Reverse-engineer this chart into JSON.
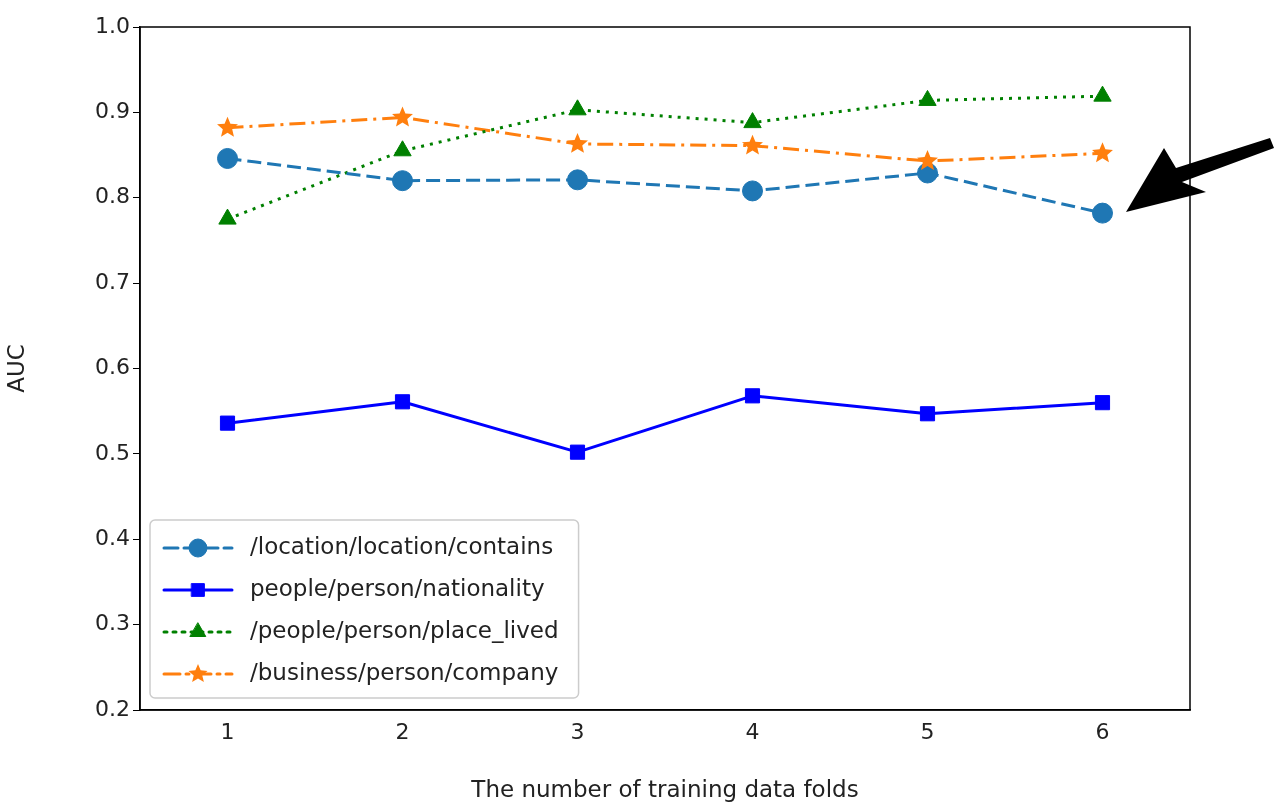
{
  "chart_data": {
    "type": "line",
    "xlabel": "The number of training data folds",
    "ylabel": "AUC",
    "x": [
      1,
      2,
      3,
      4,
      5,
      6
    ],
    "xlim": [
      0.5,
      6.5
    ],
    "xticks": [
      1,
      2,
      3,
      4,
      5,
      6
    ],
    "ylim": [
      0.2,
      1.0
    ],
    "yticks": [
      {
        "value": 0.2,
        "label": "0.2"
      },
      {
        "value": 0.3,
        "label": "0.3"
      },
      {
        "value": 0.4,
        "label": "0.4"
      },
      {
        "value": 0.5,
        "label": "0.5"
      },
      {
        "value": 0.6,
        "label": "0.6"
      },
      {
        "value": 0.7,
        "label": "0.7"
      },
      {
        "value": 0.8,
        "label": "0.8"
      },
      {
        "value": 0.9,
        "label": "0.9"
      },
      {
        "value": 1.0,
        "label": "1.0"
      }
    ],
    "grid": false,
    "legend": "bottom left",
    "series": [
      {
        "name": "/location/location/contains",
        "color": "#1f77b4",
        "marker": "circle",
        "line_style": "dashed",
        "values": [
          0.846,
          0.82,
          0.821,
          0.808,
          0.829,
          0.782
        ]
      },
      {
        "name": "people/person/nationality",
        "color": "#0000ff",
        "marker": "square",
        "line_style": "solid",
        "values": [
          0.536,
          0.561,
          0.502,
          0.568,
          0.547,
          0.56
        ]
      },
      {
        "name": "/people/person/place_lived",
        "color": "#008000",
        "marker": "triangle",
        "line_style": "dotted",
        "values": [
          0.775,
          0.855,
          0.903,
          0.888,
          0.914,
          0.919
        ]
      },
      {
        "name": "/business/person/company",
        "color": "#ff7f0e",
        "marker": "star",
        "line_style": "dashdot",
        "values": [
          0.882,
          0.894,
          0.863,
          0.861,
          0.843,
          0.852
        ]
      }
    ]
  }
}
